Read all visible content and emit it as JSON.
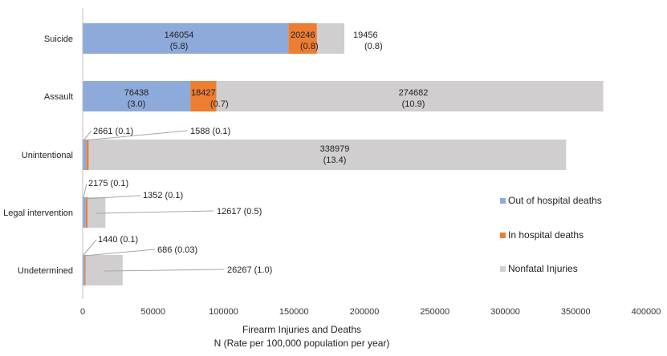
{
  "chart_data": {
    "type": "bar",
    "orientation": "horizontal",
    "stacked": true,
    "categories": [
      "Suicide",
      "Assault",
      "Unintentional",
      "Legal intervention",
      "Undetermined"
    ],
    "series": [
      {
        "name": "Out of hospital deaths",
        "color": "#8eaadb",
        "values": [
          146054,
          76438,
          2661,
          2175,
          1440
        ],
        "rate_labels": [
          "(5.8)",
          "(3.0)",
          "(0.1)",
          "(0.1)",
          "(0.1)"
        ]
      },
      {
        "name": "In hospital deaths",
        "color": "#ed7d31",
        "values": [
          20246,
          18427,
          1588,
          1352,
          686
        ],
        "rate_labels": [
          "(0.8)",
          "(0.7)",
          "(0.1)",
          "(0.1)",
          "(0.03)"
        ]
      },
      {
        "name": "Nonfatal Injuries",
        "color": "#d0cece",
        "values": [
          19456,
          274682,
          338979,
          12617,
          26267
        ],
        "rate_labels": [
          "(0.8)",
          "(10.9)",
          "(13.4)",
          "(0.5)",
          "(1.0)"
        ]
      }
    ],
    "xlim": [
      0,
      400000
    ],
    "xticks": [
      "0",
      "50000",
      "100000",
      "150000",
      "200000",
      "250000",
      "300000",
      "350000",
      "400000"
    ],
    "xlabel_line1": "Firearm Injuries and Deaths",
    "xlabel_line2": "N (Rate per 100,000 population per year)",
    "legend_position": "right",
    "grid": false
  }
}
